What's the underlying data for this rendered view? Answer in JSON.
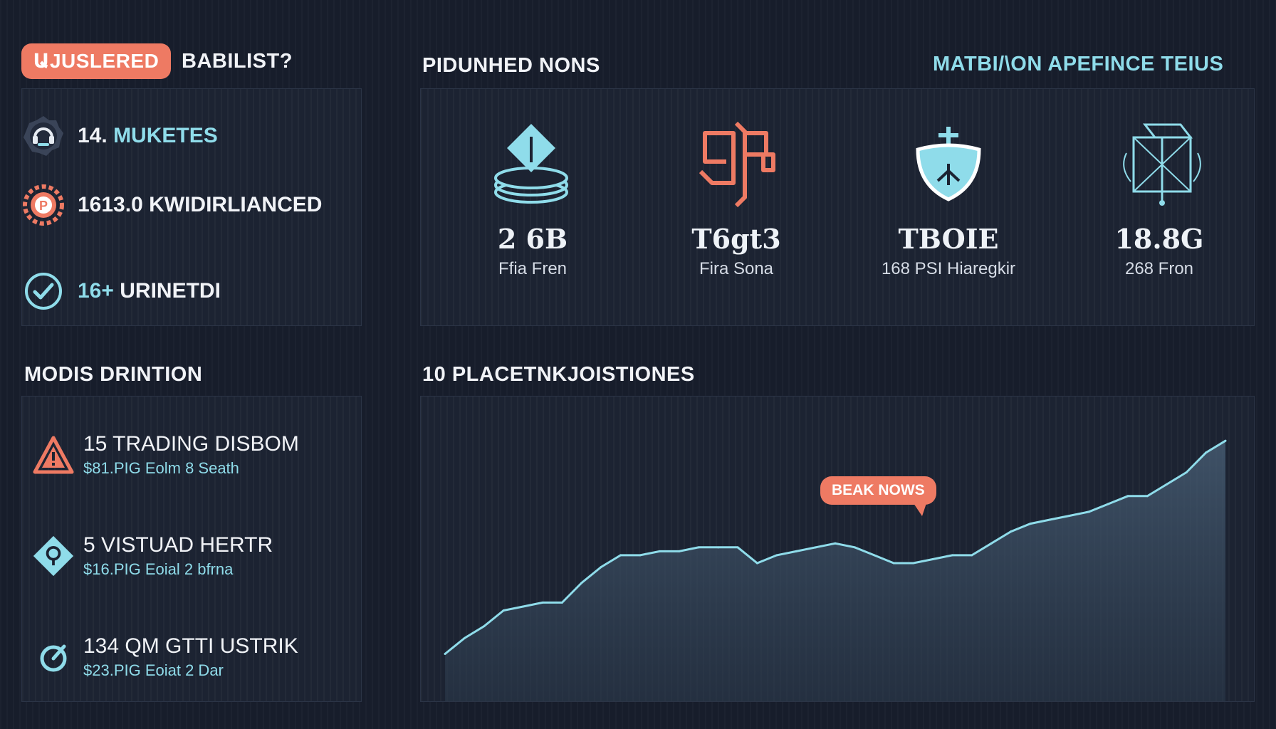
{
  "header": {
    "badge": "ԱJUSLERED",
    "subtitle": "BABILIST?",
    "center_title": "PIDUNHED NONS",
    "right_title": "MATBI/\\ON APEFINCE TEIUS"
  },
  "summary": [
    {
      "value": "14.",
      "label": "MUKETES",
      "icon": "headset-badge-icon"
    },
    {
      "value": "1613.0",
      "label": "KWIDIRLIANCED",
      "icon": "orange-gear-badge-icon"
    },
    {
      "value": "16+",
      "label": "URINETDI",
      "icon": "check-circle-icon"
    }
  ],
  "stats": [
    {
      "icon": "coin-stack-diamond-icon",
      "value": "2 6B",
      "caption": "Ffia Fren"
    },
    {
      "icon": "orange-arrow-symbol-icon",
      "value": "T6gt3",
      "caption": "Fira Sona"
    },
    {
      "icon": "shield-plus-icon",
      "value": "TBOIE",
      "caption": "168 PSI Hiaregkir"
    },
    {
      "icon": "wireframe-cube-icon",
      "value": "18.8G",
      "caption": "268 Fron"
    }
  ],
  "risks_title": "MODIS DRINTION",
  "risks": [
    {
      "icon": "warning-triangle-icon",
      "title": "15 TRADING DISBOM",
      "sub": "$81.PIG Eolm 8 Seath"
    },
    {
      "icon": "diamond-pin-icon",
      "title": "5 VISTUAD HERTR",
      "sub": "$16.PIG Eoial 2 bfrna"
    },
    {
      "icon": "gauge-check-icon",
      "title": "134 QM GTTI USTRIK",
      "sub": "$23.PIG Eoiat 2 Dar"
    }
  ],
  "chart_title": "10 PLACETNKJOISTIONES",
  "callout": "BEAK NOWS",
  "colors": {
    "accent": "#ee7a63",
    "teal": "#8fdcea",
    "panel": "#1c2332"
  },
  "chart_data": {
    "type": "area",
    "title": "10 PLACETNKJOISTIONES",
    "x": [
      0,
      1,
      2,
      3,
      4,
      5,
      6,
      7,
      8,
      9,
      10,
      11,
      12,
      13,
      14,
      15,
      16,
      17,
      18,
      19,
      20,
      21,
      22,
      23,
      24,
      25,
      26,
      27,
      28,
      29,
      30,
      31,
      32,
      33,
      34,
      35,
      36,
      37,
      38,
      39,
      40
    ],
    "series": [
      {
        "values": [
          12,
          16,
          19,
          23,
          24,
          25,
          25,
          30,
          34,
          37,
          37,
          38,
          38,
          39,
          39,
          39,
          35,
          37,
          38,
          39,
          40,
          39,
          37,
          35,
          35,
          36,
          37,
          37,
          40,
          43,
          45,
          46,
          47,
          48,
          50,
          52,
          52,
          55,
          58,
          63,
          66
        ]
      }
    ],
    "annotations": [
      "BEAK NOWS"
    ],
    "grid": false,
    "legend": "none"
  }
}
